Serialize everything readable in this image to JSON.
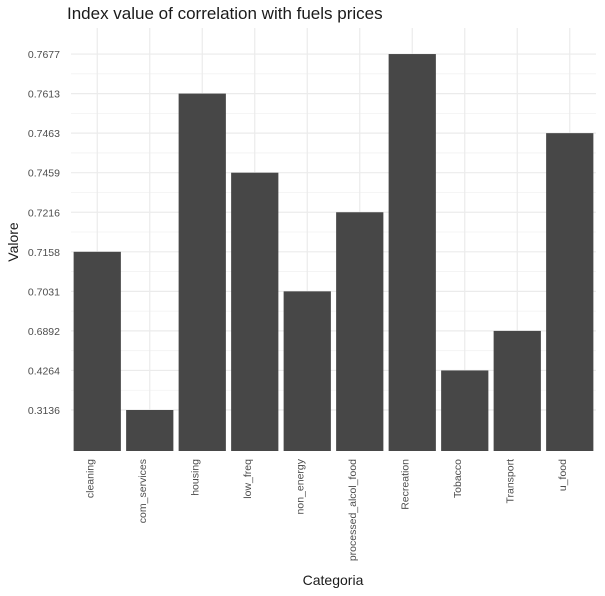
{
  "chart_data": {
    "type": "bar",
    "title": "Index value of correlation with fuels prices",
    "xlabel": "Categoria",
    "ylabel": "Valore",
    "categories": [
      "cleaning",
      "com_services",
      "housing",
      "low_freq",
      "non_energy",
      "processed_alcol_food",
      "Recreation",
      "Tobacco",
      "Transport",
      "u_food"
    ],
    "values": [
      0.7158,
      0.3136,
      0.7613,
      0.7459,
      0.7031,
      0.7216,
      0.7677,
      0.4264,
      0.6892,
      0.7463
    ],
    "y_tick_labels": [
      "0.3136",
      "0.4264",
      "0.6892",
      "0.7031",
      "0.7158",
      "0.7216",
      "0.7459",
      "0.7463",
      "0.7613",
      "0.7677"
    ],
    "y_axis_scale": "categorical (ticks are the sorted distinct values, equally spaced)",
    "grid": true,
    "bar_color": "#474747",
    "grid_color": "#ebebeb"
  }
}
